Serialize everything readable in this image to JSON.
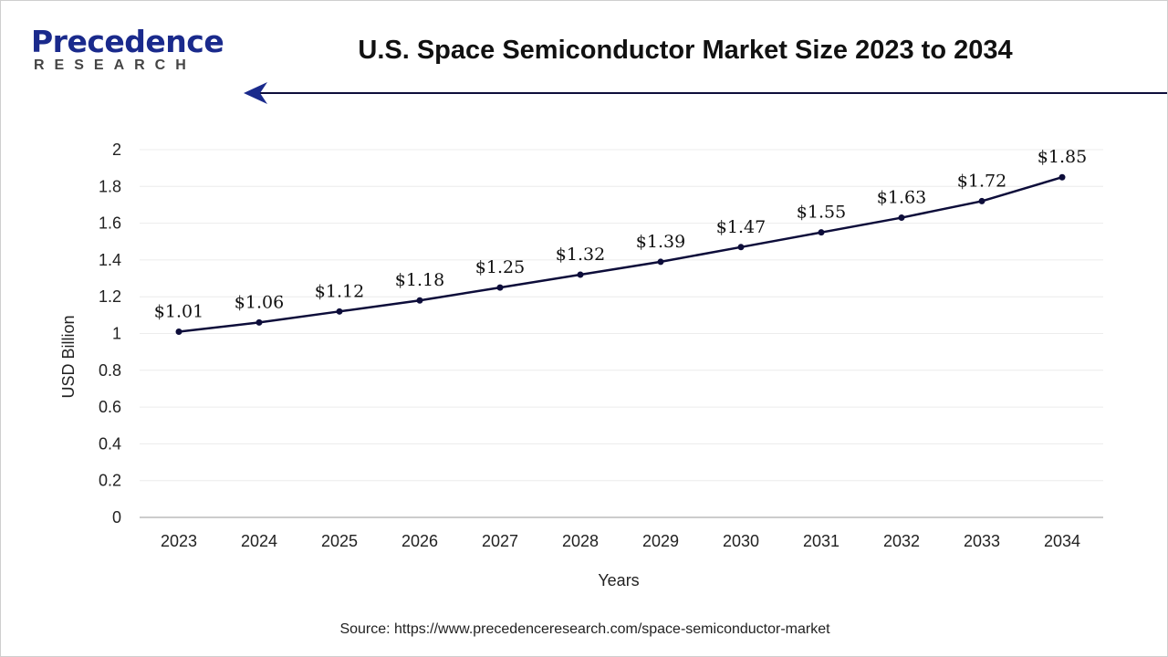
{
  "brand": {
    "line1": "Precedence",
    "line2": "RESEARCH"
  },
  "title": "U.S. Space Semiconductor Market Size 2023 to 2034",
  "source": "Source: https://www.precedenceresearch.com/space-semiconductor-market",
  "colors": {
    "line": "#0d0d3a",
    "arrow": "#1a2a8c",
    "grid": "#ececec"
  },
  "chart_data": {
    "type": "line",
    "title": "U.S. Space Semiconductor Market Size 2023 to 2034",
    "xlabel": "Years",
    "ylabel": "USD Billion",
    "ylim": [
      0,
      2
    ],
    "yticks": [
      "0",
      "0.2",
      "0.4",
      "0.6",
      "0.8",
      "1",
      "1.2",
      "1.4",
      "1.6",
      "1.8",
      "2"
    ],
    "categories": [
      "2023",
      "2024",
      "2025",
      "2026",
      "2027",
      "2028",
      "2029",
      "2030",
      "2031",
      "2032",
      "2033",
      "2034"
    ],
    "values": [
      1.01,
      1.06,
      1.12,
      1.18,
      1.25,
      1.32,
      1.39,
      1.47,
      1.55,
      1.63,
      1.72,
      1.85
    ],
    "labels": [
      "$1.01",
      "$1.06",
      "$1.12",
      "$1.18",
      "$1.25",
      "$1.32",
      "$1.39",
      "$1.47",
      "$1.55",
      "$1.63",
      "$1.72",
      "$1.85"
    ],
    "grid": true
  }
}
